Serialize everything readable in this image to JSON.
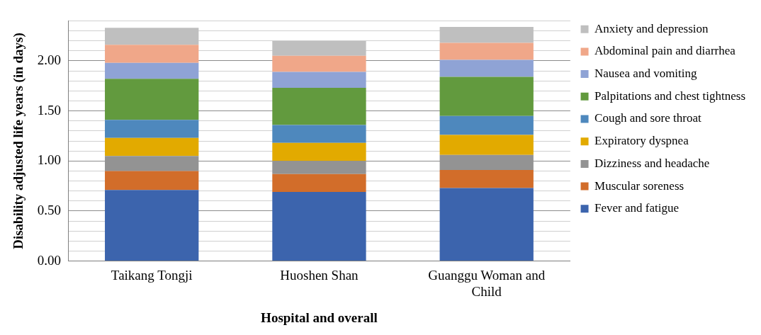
{
  "chart_data": {
    "type": "bar",
    "stacked": true,
    "xlabel": "Hospital and overall",
    "ylabel": "Disability adjusted life years (in days)",
    "categories": [
      "Taikang Tongji",
      "Huoshen Shan",
      "Guanggu Woman and Child"
    ],
    "series": [
      {
        "name": "Fever and fatigue",
        "color": "#3c64ad",
        "values": [
          0.71,
          0.69,
          0.73
        ]
      },
      {
        "name": "Muscular soreness",
        "color": "#d26d2a",
        "values": [
          0.19,
          0.18,
          0.18
        ]
      },
      {
        "name": "Dizziness and headache",
        "color": "#939393",
        "values": [
          0.15,
          0.13,
          0.15
        ]
      },
      {
        "name": "Expiratory dyspnea",
        "color": "#e2aa00",
        "values": [
          0.18,
          0.18,
          0.2
        ]
      },
      {
        "name": "Cough and sore throat",
        "color": "#4e88bd",
        "values": [
          0.18,
          0.18,
          0.19
        ]
      },
      {
        "name": "Palpitations and chest tightness",
        "color": "#629a3e",
        "values": [
          0.41,
          0.37,
          0.39
        ]
      },
      {
        "name": "Nausea and vomiting",
        "color": "#8fa3d5",
        "values": [
          0.16,
          0.16,
          0.17
        ]
      },
      {
        "name": "Abdominal pain and diarrhea",
        "color": "#f0a789",
        "values": [
          0.18,
          0.16,
          0.17
        ]
      },
      {
        "name": "Anxiety and depression",
        "color": "#bfbfbf",
        "values": [
          0.17,
          0.15,
          0.16
        ]
      }
    ],
    "ylim": [
      0,
      2.4
    ],
    "yticks": [
      {
        "value": 0,
        "label": "0.00"
      },
      {
        "value": 0.1,
        "label": null
      },
      {
        "value": 0.2,
        "label": null
      },
      {
        "value": 0.3,
        "label": null
      },
      {
        "value": 0.4,
        "label": null
      },
      {
        "value": 0.5,
        "label": "0.50"
      },
      {
        "value": 0.6,
        "label": null
      },
      {
        "value": 0.7,
        "label": null
      },
      {
        "value": 0.8,
        "label": null
      },
      {
        "value": 0.9,
        "label": null
      },
      {
        "value": 1,
        "label": "1.00"
      },
      {
        "value": 1.1,
        "label": null
      },
      {
        "value": 1.2,
        "label": null
      },
      {
        "value": 1.3,
        "label": null
      },
      {
        "value": 1.4,
        "label": null
      },
      {
        "value": 1.5,
        "label": "1.50"
      },
      {
        "value": 1.6,
        "label": null
      },
      {
        "value": 1.7,
        "label": null
      },
      {
        "value": 1.8,
        "label": null
      },
      {
        "value": 1.9,
        "label": null
      },
      {
        "value": 2,
        "label": "2.00"
      },
      {
        "value": 2.1,
        "label": null
      },
      {
        "value": 2.2,
        "label": null
      },
      {
        "value": 2.3,
        "label": null
      },
      {
        "value": 2.4,
        "label": null
      }
    ],
    "grid": "y",
    "legend": "right"
  }
}
